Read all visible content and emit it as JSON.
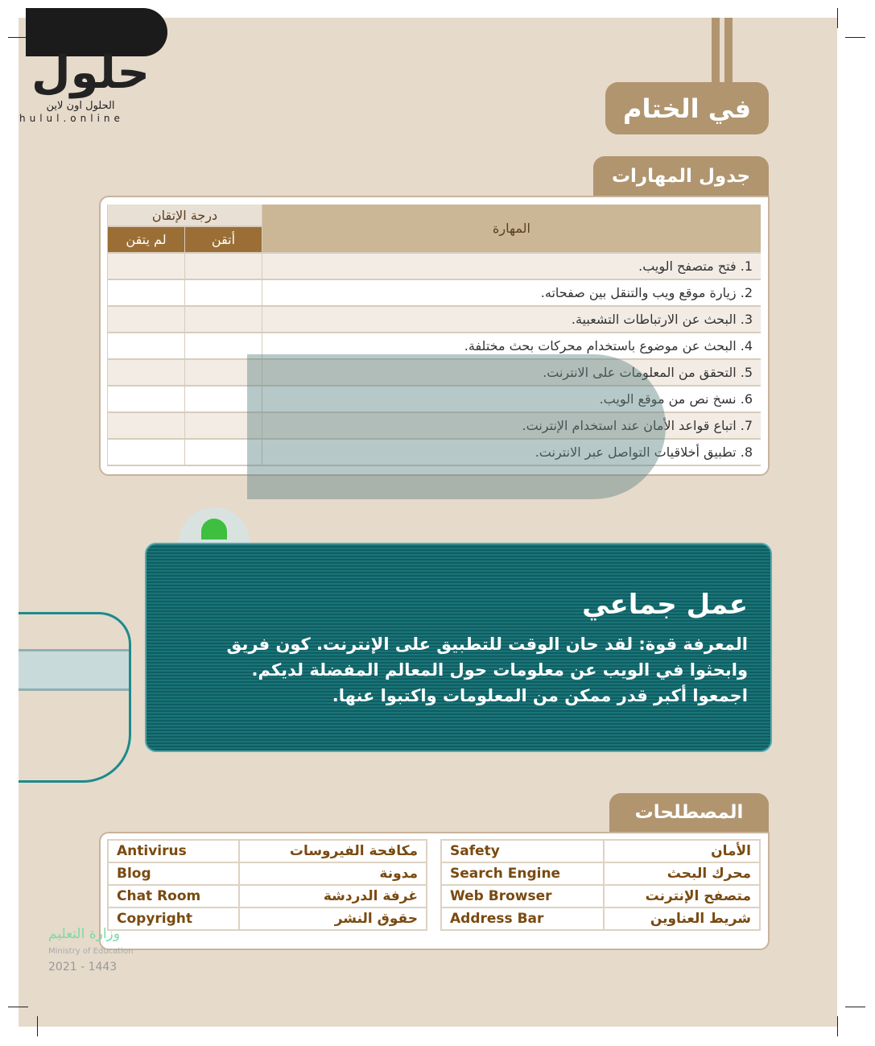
{
  "logo": {
    "text": "حلول",
    "subtitle": "الحلول اون لاين",
    "url": "hulul.online"
  },
  "header": {
    "title": "في الختام"
  },
  "skills": {
    "title": "جدول المهارات",
    "col_skill": "المهارة",
    "col_mastery": "درجة الإتقان",
    "col_mastered": "أتقن",
    "col_not_mastered": "لم يتقن",
    "rows": [
      "1. فتح متصفح الويب.",
      "2. زيارة موقع ويب والتنقل بين صفحاته.",
      "3. البحث عن الارتباطات التشعبية.",
      "4. البحث عن موضوع باستخدام محركات بحث مختلفة.",
      "5. التحقق من المعلومات على الانترنت.",
      "6. نسخ نص من موقع الويب.",
      "7. اتباع قواعد الأمان عند استخدام الإنترنت.",
      "8. تطبيق أخلاقيات التواصل عبر الانترنت."
    ]
  },
  "group_work": {
    "title": "عمل جماعي",
    "text": "المعرفة قوة: لقد حان الوقت للتطبيق على الإنترنت. كون فريق وابحثوا في الويب عن معلومات حول المعالم المفضلة لديكم. اجمعوا أكبر قدر ممكن من المعلومات واكتبوا عنها."
  },
  "terms": {
    "title": "المصطلحات",
    "rows": [
      {
        "ar1": "الأمان",
        "en1": "Safety",
        "ar2": "مكافحة الفيروسات",
        "en2": "Antivirus"
      },
      {
        "ar1": "محرك البحث",
        "en1": "Search Engine",
        "ar2": "مدونة",
        "en2": "Blog"
      },
      {
        "ar1": "متصفح الإنترنت",
        "en1": "Web Browser",
        "ar2": "غرفة الدردشة",
        "en2": "Chat Room"
      },
      {
        "ar1": "شريط العناوين",
        "en1": "Address Bar",
        "ar2": "حقوق النشر",
        "en2": "Copyright"
      }
    ]
  },
  "footer": {
    "ministry_ar": "وزارة التعليم",
    "ministry_en": "Ministry of Education",
    "year": "2021 - 1443"
  }
}
